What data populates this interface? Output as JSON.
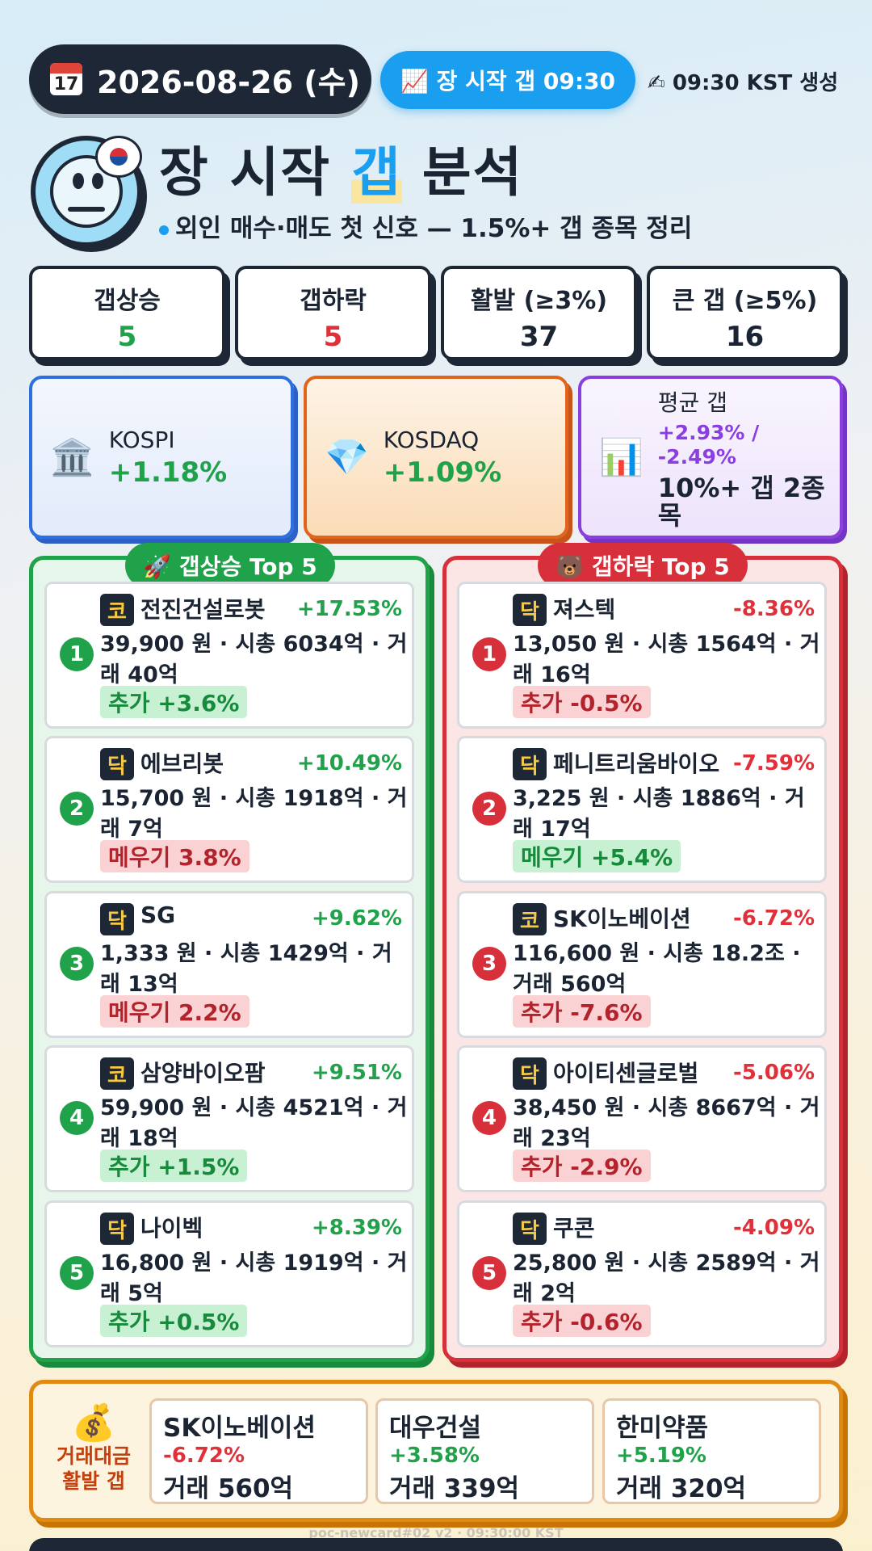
{
  "header": {
    "date": "2026-08-26 (수)",
    "calendar_icon_text": "17",
    "gap_pill": "📈 장 시작 갭 09:30",
    "generated": "✍ 09:30 KST 생성",
    "title_pre": "장 시작 ",
    "title_hl": "갭",
    "title_post": " 분석",
    "subtitle": "외인 매수·매도 첫 신호 — 1.5%+ 갭 종목 정리"
  },
  "stats": [
    {
      "label": "갭상승",
      "value": "5"
    },
    {
      "label": "갭하락",
      "value": "5"
    },
    {
      "label": "활발 (≥3%)",
      "value": "37"
    },
    {
      "label": "큰 갭 (≥5%)",
      "value": "16"
    }
  ],
  "indices": {
    "kospi": {
      "icon": "🏛️",
      "name": "KOSPI",
      "value": "+1.18%"
    },
    "kosdaq": {
      "icon": "💎",
      "name": "KOSDAQ",
      "value": "+1.09%"
    },
    "avg": {
      "icon": "📊",
      "label": "평균 갭",
      "value": "+2.93% / -2.49%",
      "sub": "10%+ 갭 2종목"
    }
  },
  "up_panel": {
    "title": "🚀 갭상승 Top 5",
    "items": [
      {
        "rank": "1",
        "market": "코",
        "name": "전진건설로봇",
        "pct": "+17.53%",
        "detail": "39,900 원 · 시총 6034억 · 거래 40억",
        "chip": "추가 +3.6%"
      },
      {
        "rank": "2",
        "market": "닥",
        "name": "에브리봇",
        "pct": "+10.49%",
        "detail": "15,700 원 · 시총 1918억 · 거래 7억",
        "chip": "메우기 3.8%"
      },
      {
        "rank": "3",
        "market": "닥",
        "name": "SG",
        "pct": "+9.62%",
        "detail": "1,333 원 · 시총 1429억 · 거래 13억",
        "chip": "메우기 2.2%"
      },
      {
        "rank": "4",
        "market": "코",
        "name": "삼양바이오팜",
        "pct": "+9.51%",
        "detail": "59,900 원 · 시총 4521억 · 거래 18억",
        "chip": "추가 +1.5%"
      },
      {
        "rank": "5",
        "market": "닥",
        "name": "나이벡",
        "pct": "+8.39%",
        "detail": "16,800 원 · 시총 1919억 · 거래 5억",
        "chip": "추가 +0.5%"
      }
    ]
  },
  "down_panel": {
    "title": "🐻 갭하락 Top 5",
    "items": [
      {
        "rank": "1",
        "market": "닥",
        "name": "져스텍",
        "pct": "-8.36%",
        "detail": "13,050 원 · 시총 1564억 · 거래 16억",
        "chip": "추가 -0.5%"
      },
      {
        "rank": "2",
        "market": "닥",
        "name": "페니트리움바이오",
        "pct": "-7.59%",
        "detail": "3,225 원 · 시총 1886억 · 거래 17억",
        "chip": "메우기 +5.4%"
      },
      {
        "rank": "3",
        "market": "코",
        "name": "SK이노베이션",
        "pct": "-6.72%",
        "detail": "116,600 원 · 시총 18.2조 · 거래 560억",
        "chip": "추가 -7.6%"
      },
      {
        "rank": "4",
        "market": "닥",
        "name": "아이티센글로벌",
        "pct": "-5.06%",
        "detail": "38,450 원 · 시총 8667억 · 거래 23억",
        "chip": "추가 -2.9%"
      },
      {
        "rank": "5",
        "market": "닥",
        "name": "쿠콘",
        "pct": "-4.09%",
        "detail": "25,800 원 · 시총 2589억 · 거래 2억",
        "chip": "추가 -0.6%"
      }
    ]
  },
  "volume": {
    "icon": "💰",
    "label": "거래대금 활발 갭",
    "items": [
      {
        "name": "SK이노베이션",
        "pct": "-6.72%",
        "vol": "거래 560억"
      },
      {
        "name": "대우건설",
        "pct": "+3.58%",
        "vol": "거래 339억"
      },
      {
        "name": "한미약품",
        "pct": "+5.19%",
        "vol": "거래 320억"
      }
    ]
  },
  "footer": "poc-newcard#02 v2 · 09:30:00 KST",
  "colors": {
    "up": "#1fa24a",
    "down": "#e0303a",
    "accent": "#1a9ef0",
    "dark": "#1e2736"
  }
}
